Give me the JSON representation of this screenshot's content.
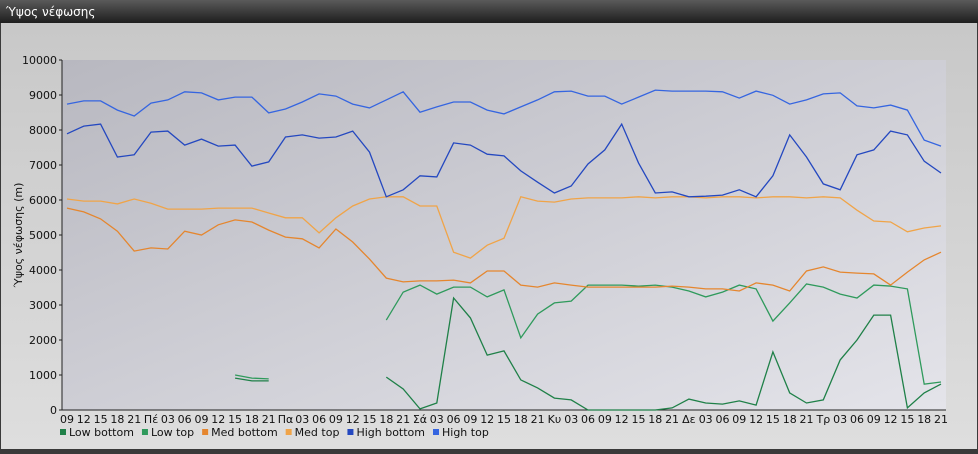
{
  "window_title": "Ύψος νέφωσης",
  "chart_data": {
    "type": "line",
    "y_label": "Ύψος νέφωσης (m)",
    "categories": [
      "09",
      "12",
      "15",
      "18",
      "21",
      "Πέ",
      "03",
      "06",
      "09",
      "12",
      "15",
      "18",
      "21",
      "Πα",
      "03",
      "06",
      "09",
      "12",
      "15",
      "18",
      "21",
      "Σά",
      "03",
      "06",
      "09",
      "12",
      "15",
      "18",
      "21",
      "Κυ",
      "03",
      "06",
      "09",
      "12",
      "15",
      "18",
      "21",
      "Δε",
      "03",
      "06",
      "09",
      "12",
      "15",
      "18",
      "21",
      "Τρ",
      "03",
      "06",
      "09",
      "12",
      "15",
      "18",
      "21"
    ],
    "ylim": [
      0,
      10000
    ],
    "yticks": [
      0,
      1000,
      2000,
      3000,
      4000,
      5000,
      6000,
      7000,
      8000,
      9000,
      10000
    ],
    "grid": false,
    "legend": "bottom-left",
    "series": [
      {
        "name": "Low bottom",
        "color": "#1f8048",
        "values": [
          null,
          null,
          null,
          null,
          null,
          null,
          null,
          null,
          null,
          null,
          910,
          830,
          830,
          null,
          null,
          null,
          null,
          null,
          null,
          940,
          600,
          30,
          200,
          3200,
          2630,
          1570,
          1690,
          860,
          630,
          340,
          290,
          0,
          0,
          0,
          0,
          0,
          60,
          310,
          200,
          170,
          260,
          140,
          1660,
          490,
          200,
          290,
          1430,
          2000,
          2710,
          2710,
          60,
          490,
          740
        ]
      },
      {
        "name": "Low top",
        "color": "#2f9a5c",
        "values": [
          null,
          null,
          null,
          null,
          null,
          null,
          null,
          null,
          null,
          null,
          1000,
          910,
          890,
          null,
          null,
          null,
          null,
          null,
          null,
          2570,
          3370,
          3570,
          3310,
          3510,
          3510,
          3230,
          3430,
          2060,
          2740,
          3060,
          3110,
          3570,
          3570,
          3570,
          3540,
          3570,
          3510,
          3400,
          3230,
          3370,
          3570,
          3460,
          2540,
          3060,
          3600,
          3510,
          3310,
          3200,
          3570,
          3540,
          3460,
          740,
          800
        ]
      },
      {
        "name": "Med bottom",
        "color": "#e5862e",
        "values": [
          5770,
          5660,
          5460,
          5110,
          4540,
          4630,
          4600,
          5110,
          5000,
          5290,
          5430,
          5370,
          5140,
          4940,
          4890,
          4630,
          5170,
          4800,
          4310,
          3770,
          3660,
          3690,
          3690,
          3710,
          3630,
          3970,
          3970,
          3570,
          3510,
          3630,
          3570,
          3510,
          3510,
          3510,
          3510,
          3510,
          3540,
          3510,
          3460,
          3460,
          3400,
          3630,
          3570,
          3400,
          3970,
          4090,
          3940,
          3910,
          3890,
          3570,
          3940,
          4290,
          4510
        ]
      },
      {
        "name": "Med top",
        "color": "#f0a448",
        "values": [
          6030,
          5970,
          5970,
          5890,
          6030,
          5910,
          5740,
          5740,
          5740,
          5770,
          5770,
          5770,
          5630,
          5490,
          5490,
          5060,
          5490,
          5830,
          6030,
          6090,
          6090,
          5830,
          5830,
          4510,
          4340,
          4710,
          4910,
          6090,
          5970,
          5940,
          6030,
          6060,
          6060,
          6060,
          6090,
          6060,
          6090,
          6090,
          6060,
          6090,
          6090,
          6060,
          6090,
          6090,
          6060,
          6090,
          6060,
          5710,
          5400,
          5370,
          5090,
          5200,
          5260
        ]
      },
      {
        "name": "High bottom",
        "color": "#2448c0",
        "values": [
          7890,
          8110,
          8170,
          7230,
          7290,
          7940,
          7970,
          7570,
          7740,
          7540,
          7570,
          6970,
          7090,
          7800,
          7860,
          7770,
          7800,
          7970,
          7370,
          6090,
          6290,
          6690,
          6660,
          7630,
          7570,
          7310,
          7260,
          6830,
          6510,
          6200,
          6400,
          7030,
          7430,
          8170,
          7060,
          6200,
          6230,
          6090,
          6110,
          6140,
          6290,
          6090,
          6690,
          7860,
          7230,
          6460,
          6290,
          7290,
          7430,
          7970,
          7860,
          7110,
          6770
        ]
      },
      {
        "name": "High top",
        "color": "#3565e0",
        "values": [
          8740,
          8830,
          8830,
          8570,
          8400,
          8770,
          8860,
          9090,
          9060,
          8860,
          8940,
          8940,
          8490,
          8600,
          8800,
          9030,
          8970,
          8740,
          8630,
          8860,
          9090,
          8510,
          8660,
          8800,
          8800,
          8570,
          8460,
          8660,
          8860,
          9090,
          9110,
          8970,
          8970,
          8740,
          8940,
          9140,
          9110,
          9110,
          9110,
          9090,
          8910,
          9110,
          8990,
          8740,
          8860,
          9030,
          9060,
          8690,
          8630,
          8710,
          8570,
          7710,
          7540
        ]
      }
    ]
  }
}
